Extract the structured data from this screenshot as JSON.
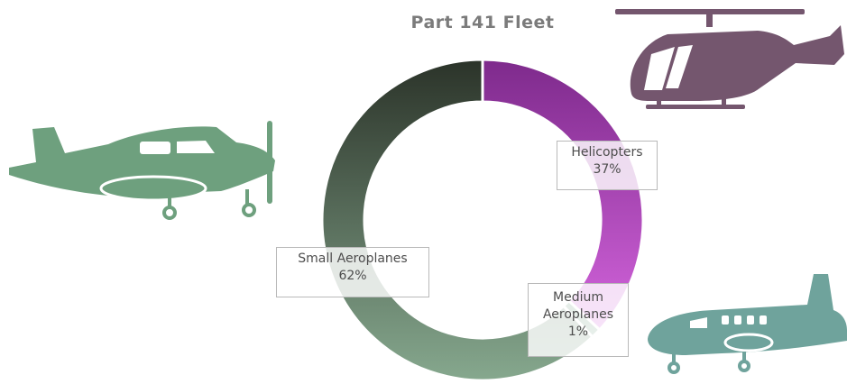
{
  "chart_data": {
    "type": "pie",
    "title": "Part 141 Fleet",
    "slices": [
      {
        "label": "Helicopters",
        "value": 37,
        "pct_label": "37%",
        "color": "#a040b8"
      },
      {
        "label": "Medium Aeroplanes",
        "value": 1,
        "pct_label": "1%",
        "color": "#4c7a62"
      },
      {
        "label": "Small Aeroplanes",
        "value": 62,
        "pct_label": "62%",
        "color": "#2e3a31"
      }
    ],
    "legend": "none",
    "icon_colors": {
      "small_aeroplane": "#6ea07e",
      "helicopter": "#74566e",
      "medium_aeroplane": "#6fa39c"
    }
  }
}
